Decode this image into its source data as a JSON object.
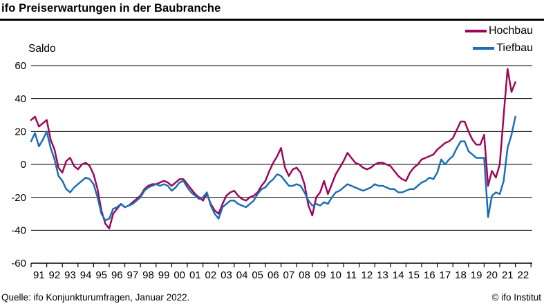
{
  "header": {
    "title": "ifo Preiserwartungen in der Baubranche"
  },
  "footer": {
    "source": "Quelle: ifo Konjunkturumfragen, Januar 2022.",
    "copyright": "© ifo Institut"
  },
  "chart_data": {
    "type": "line",
    "title": "ifo Preiserwartungen in der Baubranche",
    "ylabel": "Saldo",
    "ylim": [
      -60,
      60
    ],
    "ytick_step": 20,
    "yticks": [
      60,
      40,
      20,
      0,
      -20,
      -40,
      -60
    ],
    "grid": "horizontal-only",
    "legend_position": "top-right",
    "x_start_year": 1991,
    "x_step_years": 0.25,
    "x_axis_end_year": 2023,
    "x_end_label": "Januar 2022",
    "xtick_labels": [
      "91",
      "92",
      "93",
      "94",
      "95",
      "96",
      "97",
      "98",
      "99",
      "00",
      "01",
      "02",
      "03",
      "04",
      "05",
      "06",
      "07",
      "08",
      "09",
      "10",
      "11",
      "12",
      "13",
      "14",
      "15",
      "16",
      "17",
      "18",
      "19",
      "20",
      "21",
      "22"
    ],
    "series": [
      {
        "name": "Hochbau",
        "color": "#9d0759",
        "values": [
          27,
          29,
          23,
          25,
          27,
          15,
          9,
          -2,
          -5,
          2,
          4,
          -1,
          -3,
          0,
          1,
          -1,
          -6,
          -15,
          -28,
          -36,
          -39,
          -30,
          -27,
          -24,
          -26,
          -25,
          -23,
          -21,
          -19,
          -15,
          -13,
          -12,
          -12,
          -11,
          -10,
          -11,
          -13,
          -11,
          -9,
          -9,
          -12,
          -15,
          -18,
          -20,
          -22,
          -18,
          -24,
          -28,
          -30,
          -24,
          -19,
          -17,
          -16,
          -19,
          -21,
          -22,
          -20,
          -19,
          -17,
          -13,
          -10,
          -4,
          1,
          5,
          10,
          -2,
          -7,
          -3,
          -2,
          -5,
          -12,
          -25,
          -31,
          -20,
          -17,
          -10,
          -18,
          -12,
          -6,
          -2,
          2,
          7,
          4,
          1,
          0,
          -2,
          -3,
          -2,
          0,
          1,
          1,
          0,
          -1,
          -4,
          -7,
          -9,
          -10,
          -5,
          -2,
          0,
          3,
          4,
          5,
          6,
          9,
          11,
          13,
          14,
          16,
          21,
          26,
          26,
          20,
          15,
          12,
          12,
          18,
          -13,
          -4,
          -8,
          0,
          30,
          58,
          44,
          50
        ]
      },
      {
        "name": "Tiefbau",
        "color": "#1b6eb4",
        "values": [
          14,
          19,
          11,
          15,
          20,
          10,
          3,
          -7,
          -10,
          -15,
          -17,
          -14,
          -12,
          -10,
          -8,
          -9,
          -12,
          -20,
          -30,
          -34,
          -33,
          -27,
          -26,
          -24,
          -26,
          -25,
          -24,
          -22,
          -20,
          -16,
          -14,
          -13,
          -12,
          -13,
          -12,
          -13,
          -16,
          -14,
          -11,
          -10,
          -14,
          -17,
          -19,
          -21,
          -20,
          -17,
          -25,
          -30,
          -33,
          -26,
          -24,
          -22,
          -22,
          -24,
          -25,
          -26,
          -24,
          -22,
          -18,
          -15,
          -14,
          -11,
          -9,
          -6,
          -7,
          -10,
          -13,
          -13,
          -12,
          -13,
          -17,
          -22,
          -25,
          -24,
          -25,
          -23,
          -24,
          -20,
          -17,
          -16,
          -14,
          -12,
          -13,
          -14,
          -15,
          -16,
          -15,
          -14,
          -12,
          -13,
          -13,
          -14,
          -15,
          -15,
          -17,
          -17,
          -16,
          -15,
          -15,
          -13,
          -11,
          -10,
          -8,
          -9,
          -5,
          3,
          0,
          3,
          5,
          10,
          14,
          14,
          8,
          6,
          4,
          4,
          4,
          -32,
          -19,
          -17,
          -18,
          -10,
          10,
          18,
          29
        ]
      }
    ]
  }
}
